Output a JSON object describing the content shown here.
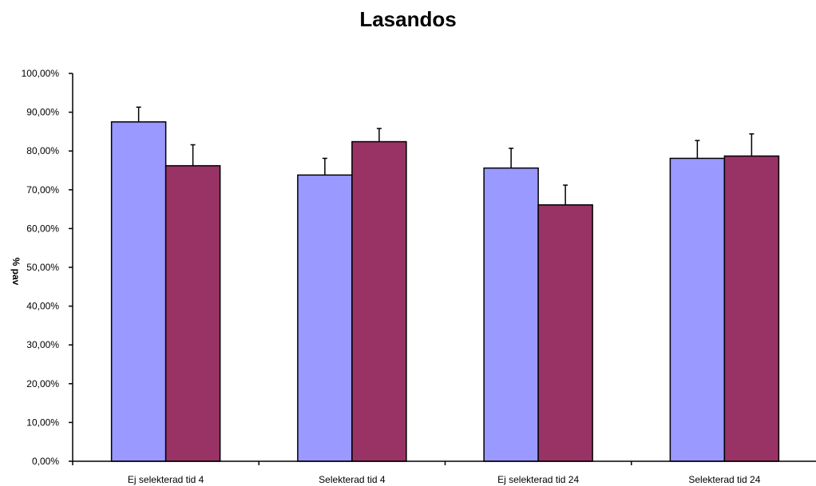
{
  "chart_data": {
    "type": "bar",
    "title": "Lasandos",
    "xlabel": "",
    "ylabel": "% pav",
    "categories": [
      "Ej selekterad tid 4",
      "Selekterad tid 4",
      "Ej selekterad tid 24",
      "Selekterad tid 24"
    ],
    "series": [
      {
        "color": "#9999ff",
        "values": [
          0.875,
          0.738,
          0.756,
          0.781
        ],
        "errors": [
          0.038,
          0.043,
          0.051,
          0.046
        ]
      },
      {
        "color": "#993366",
        "values": [
          0.762,
          0.824,
          0.661,
          0.787
        ],
        "errors": [
          0.054,
          0.034,
          0.051,
          0.057
        ]
      }
    ],
    "ylim": [
      0,
      1
    ],
    "ytick_labels": [
      "0,00%",
      "10,00%",
      "20,00%",
      "30,00%",
      "40,00%",
      "50,00%",
      "60,00%",
      "70,00%",
      "80,00%",
      "90,00%",
      "100,00%"
    ],
    "grid": false,
    "legend": "none"
  }
}
